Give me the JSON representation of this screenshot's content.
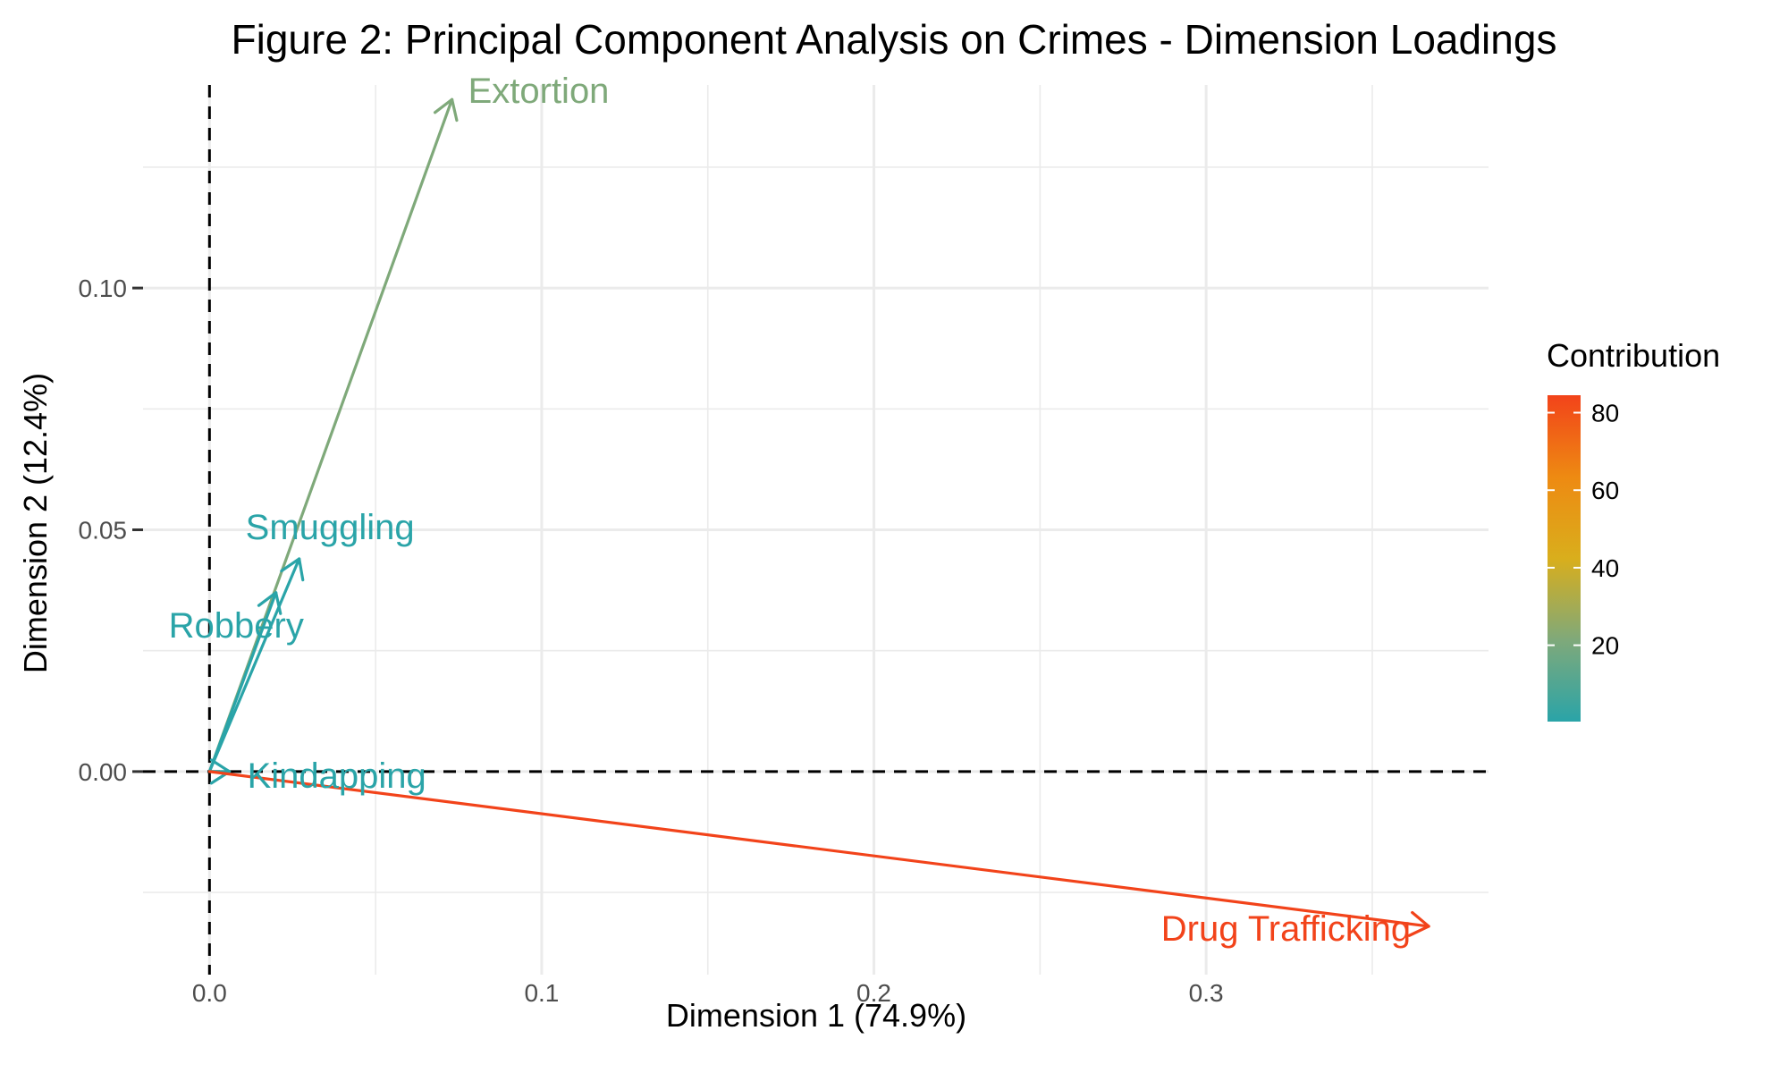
{
  "chart_data": {
    "type": "scatter",
    "subtype": "pca-loading-vectors",
    "title": "Figure 2: Principal Component Analysis on Crimes - Dimension Loadings",
    "xlabel": "Dimension 1 (74.9%)",
    "ylabel": "Dimension 2 (12.4%)",
    "xlim": [
      -0.02,
      0.385
    ],
    "ylim": [
      -0.042,
      0.142
    ],
    "x_ticks": [
      0.0,
      0.1,
      0.2,
      0.3
    ],
    "x_tick_labels": [
      "0.0",
      "0.1",
      "0.2",
      "0.3"
    ],
    "y_ticks": [
      0.0,
      0.05,
      0.1
    ],
    "y_tick_labels": [
      "0.00",
      "0.05",
      "0.10"
    ],
    "grid": true,
    "reference_lines": {
      "x": 0,
      "y": 0,
      "style": "dashed"
    },
    "series": [
      {
        "name": "Extortion",
        "x": 0.073,
        "y": 0.139,
        "contribution": 12.3,
        "color": "#7fa97a"
      },
      {
        "name": "Smuggling",
        "x": 0.027,
        "y": 0.044,
        "contribution": 1.6,
        "color": "#2aa4a8"
      },
      {
        "name": "Robbery",
        "x": 0.02,
        "y": 0.037,
        "contribution": 1.1,
        "color": "#2aa4a8"
      },
      {
        "name": "Kindapping",
        "x": 0.006,
        "y": 0.0,
        "contribution": 0.3,
        "color": "#2aa4a8"
      },
      {
        "name": "Drug Trafficking",
        "x": 0.367,
        "y": -0.032,
        "contribution": 84.5,
        "color": "#f2431a"
      }
    ],
    "legend": {
      "title": "Contribution",
      "position": "right",
      "ticks": [
        20,
        40,
        60,
        80
      ],
      "range": [
        0.3,
        84.5
      ],
      "gradient_colors": [
        "#2aa4a8",
        "#7fa97a",
        "#d9ae1c",
        "#ee8a12",
        "#f2431a"
      ]
    }
  }
}
